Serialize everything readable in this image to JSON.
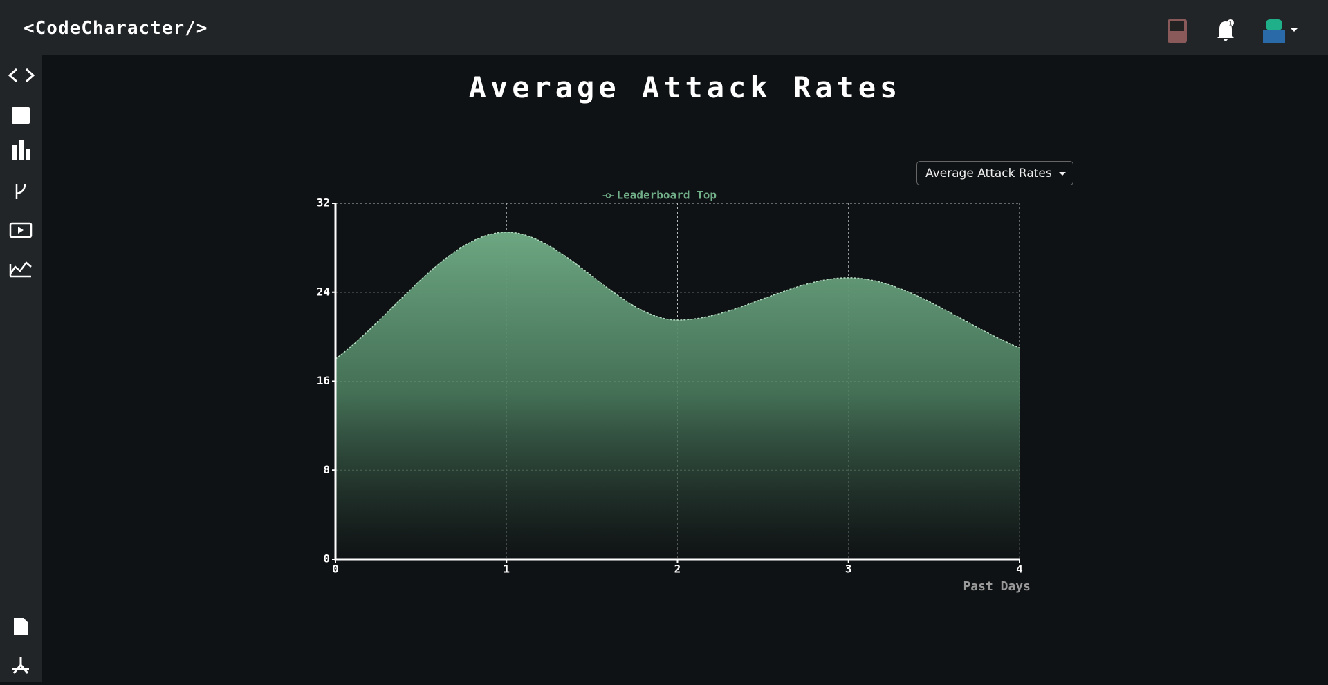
{
  "header": {
    "brand": "<CodeCharacter/>",
    "notification_count": 1
  },
  "page": {
    "dropdown": "Average Attack Rates"
  },
  "chart_data": {
    "type": "area",
    "title": "Average Attack Rates",
    "xlabel": "Past Days",
    "x": [
      0,
      1,
      2,
      3,
      4
    ],
    "series": [
      {
        "name": "Leaderboard Top",
        "color": "#72b08a",
        "values": [
          18,
          29.4,
          21.5,
          25.3,
          19
        ]
      }
    ],
    "xlim": [
      0,
      4
    ],
    "xticks": [
      0,
      1,
      2,
      3,
      4
    ],
    "ylim": [
      0,
      32
    ],
    "yticks": [
      0,
      8,
      16,
      24,
      32
    ],
    "grid": true,
    "legend": "top"
  }
}
